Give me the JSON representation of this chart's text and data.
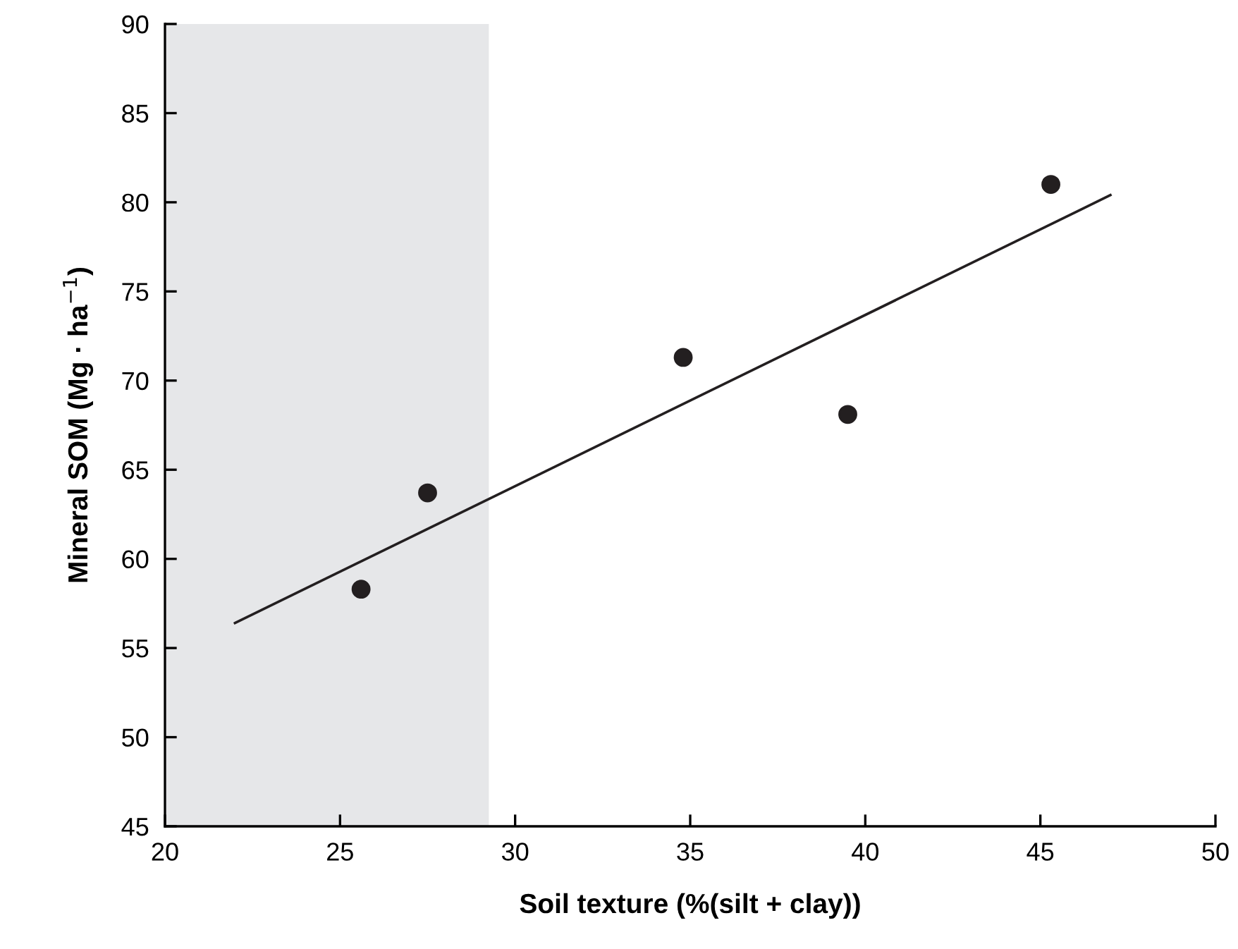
{
  "chart_data": {
    "type": "scatter",
    "xlabel": "Soil texture (%(silt + clay))",
    "ylabel": "Mineral SOM (Mg · ha$^{−1}$)",
    "x": [
      25.6,
      27.5,
      34.8,
      39.5,
      45.3
    ],
    "series": [
      {
        "type": "scatter",
        "color": "#231f20",
        "marker": "circle",
        "values": [
          58.3,
          63.7,
          71.3,
          68.1,
          81.0
        ]
      },
      {
        "type": "line",
        "color": "#231f20",
        "x": [
          22.0,
          47.0
        ],
        "values": [
          56.4,
          80.4
        ]
      }
    ],
    "bands": [
      {
        "axis": "x",
        "from": 20,
        "to": 29.25,
        "color": "#e6e7e9"
      }
    ],
    "xlim": [
      20,
      50
    ],
    "xticks": [
      20,
      25,
      30,
      35,
      40,
      45,
      50
    ],
    "ylim": [
      45,
      90
    ],
    "yticks": [
      45,
      50,
      55,
      60,
      65,
      70,
      75,
      80,
      85,
      90
    ],
    "grid": false,
    "legend": false
  }
}
